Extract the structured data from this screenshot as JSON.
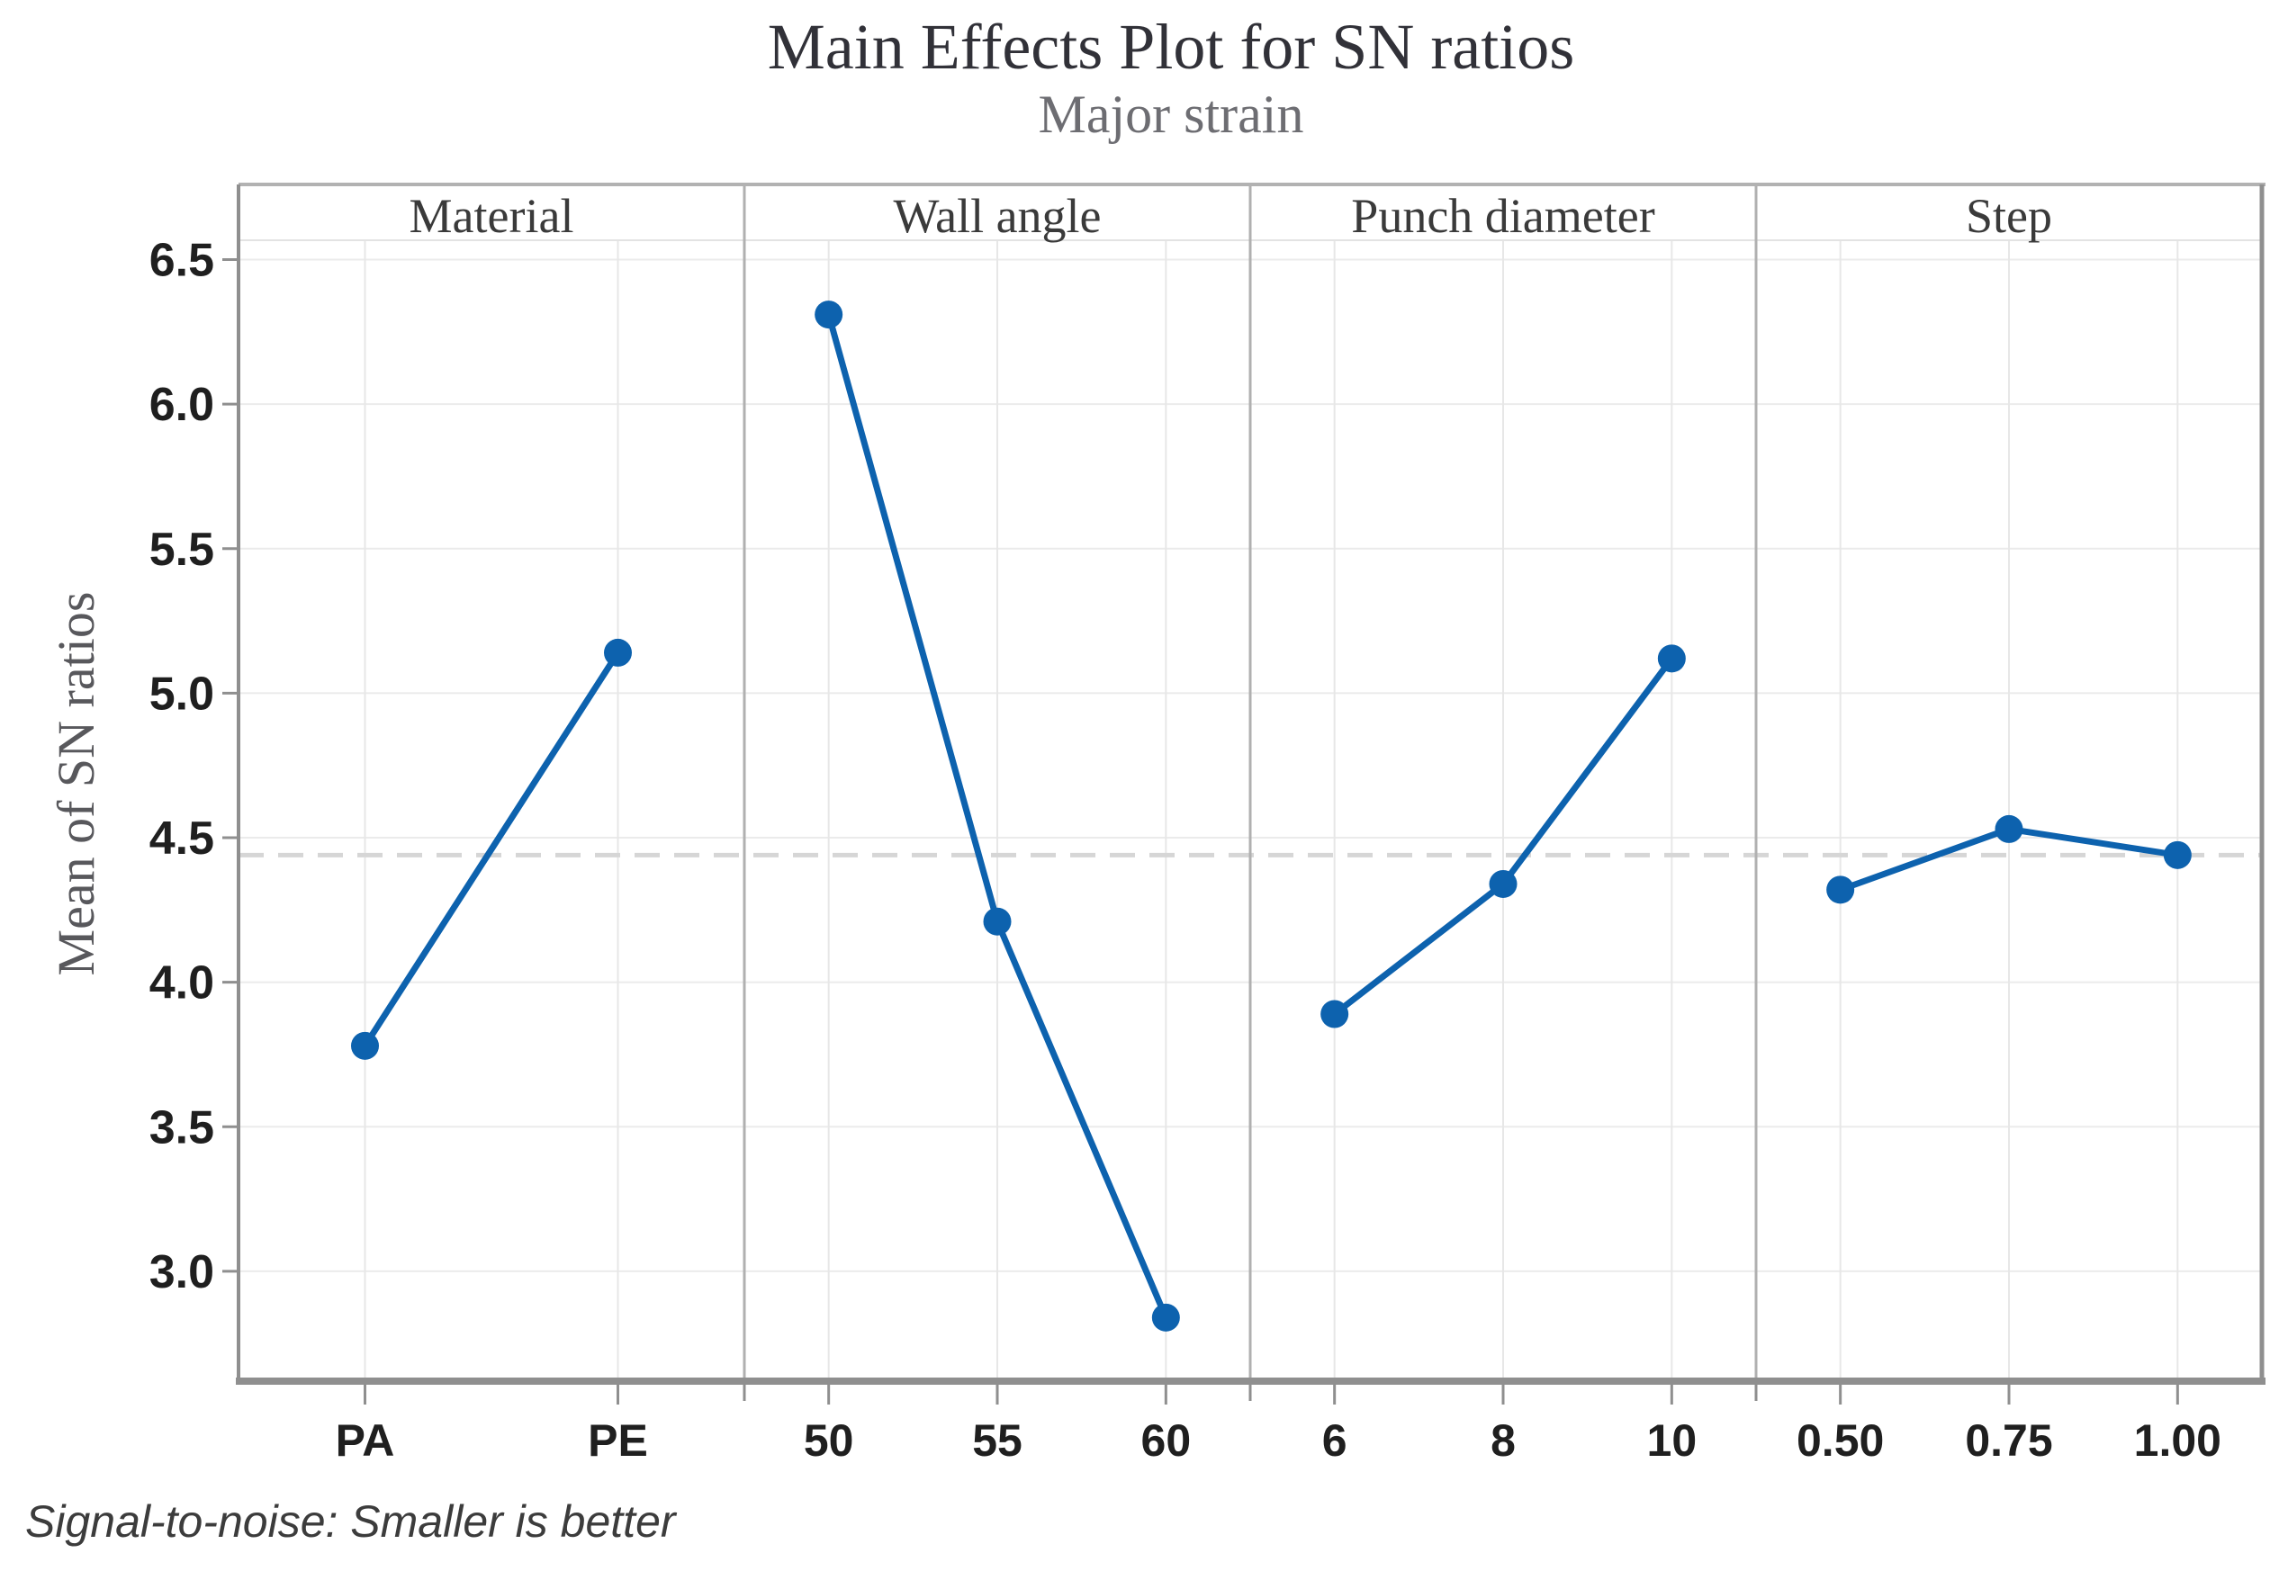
{
  "chart_data": {
    "type": "line",
    "title": "Main Effects Plot for SN ratios",
    "subtitle": "Major strain",
    "ylabel": "Mean of SN ratios",
    "footnote": "Signal-to-noise: Smaller is better",
    "ylim": [
      2.62,
      6.76
    ],
    "yticks": [
      3.0,
      3.5,
      4.0,
      4.5,
      5.0,
      5.5,
      6.0,
      6.5
    ],
    "reference_line": 4.44,
    "grid": true,
    "legend": "none",
    "panels": [
      {
        "label": "Material",
        "categories": [
          "PA",
          "PE"
        ],
        "values": [
          3.78,
          5.14
        ]
      },
      {
        "label": "Wall angle",
        "categories": [
          "50",
          "55",
          "60"
        ],
        "values": [
          6.31,
          4.21,
          2.84
        ]
      },
      {
        "label": "Punch diameter",
        "categories": [
          "6",
          "8",
          "10"
        ],
        "values": [
          3.89,
          4.34,
          5.12
        ]
      },
      {
        "label": "Step",
        "categories": [
          "0.50",
          "0.75",
          "1.00"
        ],
        "values": [
          4.32,
          4.53,
          4.44
        ]
      }
    ],
    "colors": {
      "line": "#0d62ae",
      "marker": "#0d62ae",
      "reference": "#d6d6d6",
      "grid": "#ebebeb",
      "grid_vertical": "#e7e7e7",
      "border": "#8f8f8f",
      "border_top": "#b2b2b2",
      "panel_separator": "#b0b0b0",
      "header_line": "#e3e3e3",
      "tick": "#8f8f8f",
      "tick_text": "#1f1f1f",
      "header_text": "#3a3a3a"
    }
  }
}
